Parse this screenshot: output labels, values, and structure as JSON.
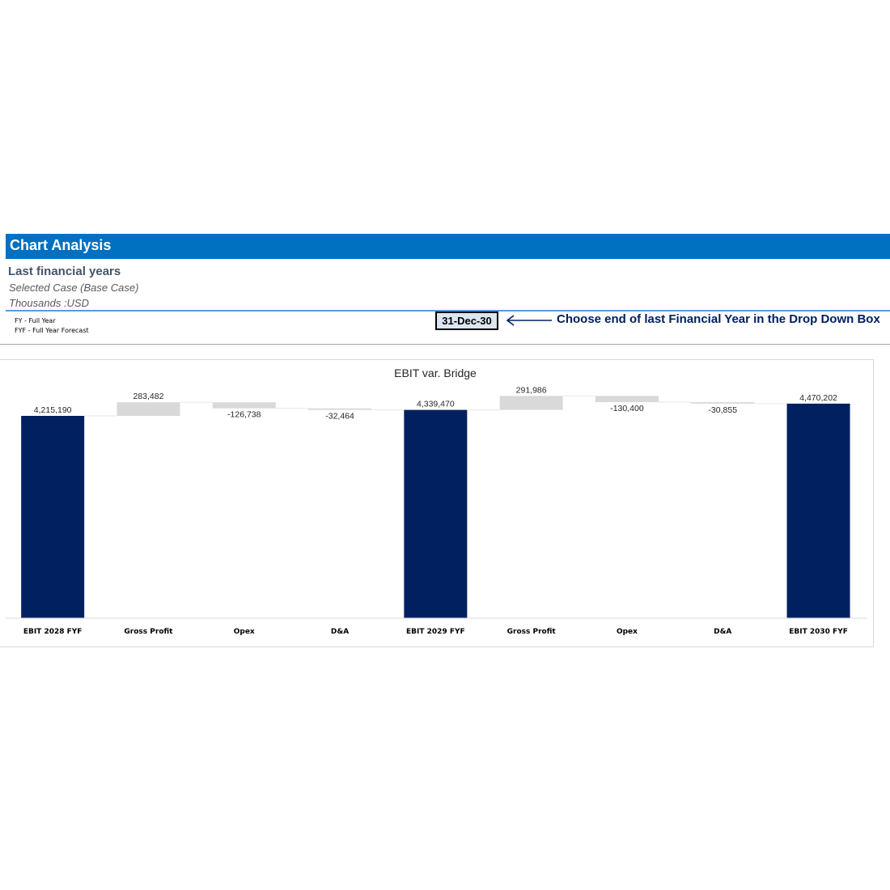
{
  "header": {
    "title": "Chart Analysis"
  },
  "info": {
    "subtitle": "Last financial years",
    "case": "Selected Case (Base Case)",
    "units": "Thousands :USD"
  },
  "legend": {
    "fy": "FY - Full Year",
    "fyf": "FYF - Full Year Forecast"
  },
  "selector": {
    "value": "31-Dec-30",
    "instruction": "Choose end of last Financial Year in the Drop Down Box"
  },
  "colors": {
    "header": "#0070c0",
    "total_bar": "#002060",
    "delta_bar": "#d9d9d9",
    "instruction": "#002060"
  },
  "chart_data": {
    "type": "bar",
    "subtype": "waterfall",
    "title": "EBIT var. Bridge",
    "categories": [
      "EBIT 2028 FYF",
      "Gross Profit",
      "Opex",
      "D&A",
      "EBIT 2029 FYF",
      "Gross Profit",
      "Opex",
      "D&A",
      "EBIT 2030 FYF"
    ],
    "values": [
      4215190,
      283482,
      -126738,
      -32464,
      4339470,
      291986,
      -130400,
      -30855,
      4470202
    ],
    "labels": [
      "4,215,190",
      "283,482",
      "-126,738",
      "-32,464",
      "4,339,470",
      "291,986",
      "-130,400",
      "-30,855",
      "4,470,202"
    ],
    "kinds": [
      "total",
      "delta",
      "delta",
      "delta",
      "total",
      "delta",
      "delta",
      "delta",
      "total"
    ],
    "ylim": [
      0,
      4650000
    ],
    "grid": false,
    "legend": "none"
  }
}
